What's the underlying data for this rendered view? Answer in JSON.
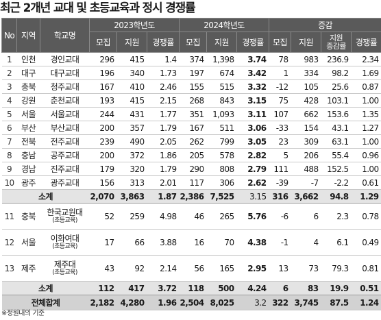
{
  "title": "최근 2개년 교대 및 초등교육과 정시 경쟁률",
  "headers": {
    "no": "No",
    "region": "지역",
    "school": "학교명",
    "y2023": "2023학년도",
    "y2024": "2024학년도",
    "change": "증감",
    "recruit": "모집",
    "apply": "지원",
    "ratio": "경쟁률",
    "apply_rate_line1": "지원",
    "apply_rate_line2": "증감률"
  },
  "rows": [
    {
      "no": "1",
      "region": "인천",
      "school": "경인교대",
      "r23": "296",
      "a23": "415",
      "c23": "1.4",
      "r24": "374",
      "a24": "1,398",
      "c24": "3.74",
      "dr": "78",
      "da": "983",
      "rate": "236.9",
      "dc": "2.34"
    },
    {
      "no": "2",
      "region": "대구",
      "school": "대구교대",
      "r23": "196",
      "a23": "340",
      "c23": "1.73",
      "r24": "197",
      "a24": "674",
      "c24": "3.42",
      "dr": "1",
      "da": "334",
      "rate": "98.2",
      "dc": "1.69"
    },
    {
      "no": "3",
      "region": "충북",
      "school": "청주교대",
      "r23": "167",
      "a23": "410",
      "c23": "2.46",
      "r24": "155",
      "a24": "515",
      "c24": "3.32",
      "dr": "-12",
      "da": "105",
      "rate": "25.6",
      "dc": "0.87"
    },
    {
      "no": "4",
      "region": "강원",
      "school": "춘천교대",
      "r23": "193",
      "a23": "415",
      "c23": "2.15",
      "r24": "268",
      "a24": "843",
      "c24": "3.15",
      "dr": "75",
      "da": "428",
      "rate": "103.1",
      "dc": "1.00"
    },
    {
      "no": "5",
      "region": "서울",
      "school": "서울교대",
      "r23": "244",
      "a23": "431",
      "c23": "1.77",
      "r24": "351",
      "a24": "1,093",
      "c24": "3.11",
      "dr": "107",
      "da": "662",
      "rate": "153.6",
      "dc": "1.35"
    },
    {
      "no": "6",
      "region": "부산",
      "school": "부산교대",
      "r23": "200",
      "a23": "357",
      "c23": "1.79",
      "r24": "167",
      "a24": "511",
      "c24": "3.06",
      "dr": "-33",
      "da": "154",
      "rate": "43.1",
      "dc": "1.27"
    },
    {
      "no": "7",
      "region": "전북",
      "school": "전주교대",
      "r23": "239",
      "a23": "490",
      "c23": "2.05",
      "r24": "262",
      "a24": "799",
      "c24": "3.05",
      "dr": "23",
      "da": "309",
      "rate": "63.1",
      "dc": "1.00"
    },
    {
      "no": "8",
      "region": "충남",
      "school": "공주교대",
      "r23": "200",
      "a23": "372",
      "c23": "1.86",
      "r24": "205",
      "a24": "578",
      "c24": "2.82",
      "dr": "5",
      "da": "206",
      "rate": "55.4",
      "dc": "0.96"
    },
    {
      "no": "9",
      "region": "경남",
      "school": "진주교대",
      "r23": "179",
      "a23": "320",
      "c23": "1.79",
      "r24": "290",
      "a24": "808",
      "c24": "2.79",
      "dr": "111",
      "da": "488",
      "rate": "152.5",
      "dc": "1.00"
    },
    {
      "no": "10",
      "region": "광주",
      "school": "광주교대",
      "r23": "156",
      "a23": "313",
      "c23": "2.01",
      "r24": "117",
      "a24": "306",
      "c24": "2.62",
      "dr": "-39",
      "da": "-7",
      "rate": "-2.2",
      "dc": "0.61"
    }
  ],
  "subtotal1": {
    "label": "소계",
    "r23": "2,070",
    "a23": "3,863",
    "c23": "1.87",
    "r24": "2,386",
    "a24": "7,525",
    "c24": "3.15",
    "dr": "316",
    "da": "3,662",
    "rate": "94.8",
    "dc": "1.29"
  },
  "rows2": [
    {
      "no": "11",
      "region": "충북",
      "school": "한국교원대",
      "school_sub": "(초등교육)",
      "r23": "52",
      "a23": "259",
      "c23": "4.98",
      "r24": "46",
      "a24": "265",
      "c24": "5.76",
      "dr": "-6",
      "da": "6",
      "rate": "2.3",
      "dc": "0.78"
    },
    {
      "no": "12",
      "region": "서울",
      "school": "이화여대",
      "school_sub": "(초등교육)",
      "r23": "17",
      "a23": "66",
      "c23": "3.88",
      "r24": "16",
      "a24": "70",
      "c24": "4.38",
      "dr": "-1",
      "da": "4",
      "rate": "6.1",
      "dc": "0.49"
    },
    {
      "no": "13",
      "region": "제주",
      "school": "제주대",
      "school_sub": "(초등교육)",
      "r23": "43",
      "a23": "92",
      "c23": "2.14",
      "r24": "56",
      "a24": "165",
      "c24": "2.95",
      "dr": "13",
      "da": "73",
      "rate": "79.3",
      "dc": "0.81"
    }
  ],
  "subtotal2": {
    "label": "소계",
    "r23": "112",
    "a23": "417",
    "c23": "3.72",
    "r24": "118",
    "a24": "500",
    "c24": "4.24",
    "dr": "6",
    "da": "83",
    "rate": "19.9",
    "dc": "0.51"
  },
  "total": {
    "label": "전체합계",
    "r23": "2,182",
    "a23": "4,280",
    "c23": "1.96",
    "r24": "2,504",
    "a24": "8,025",
    "c24": "3.2",
    "dr": "322",
    "da": "3,745",
    "rate": "87.5",
    "dc": "1.24"
  },
  "note": "※정원내의 기준"
}
